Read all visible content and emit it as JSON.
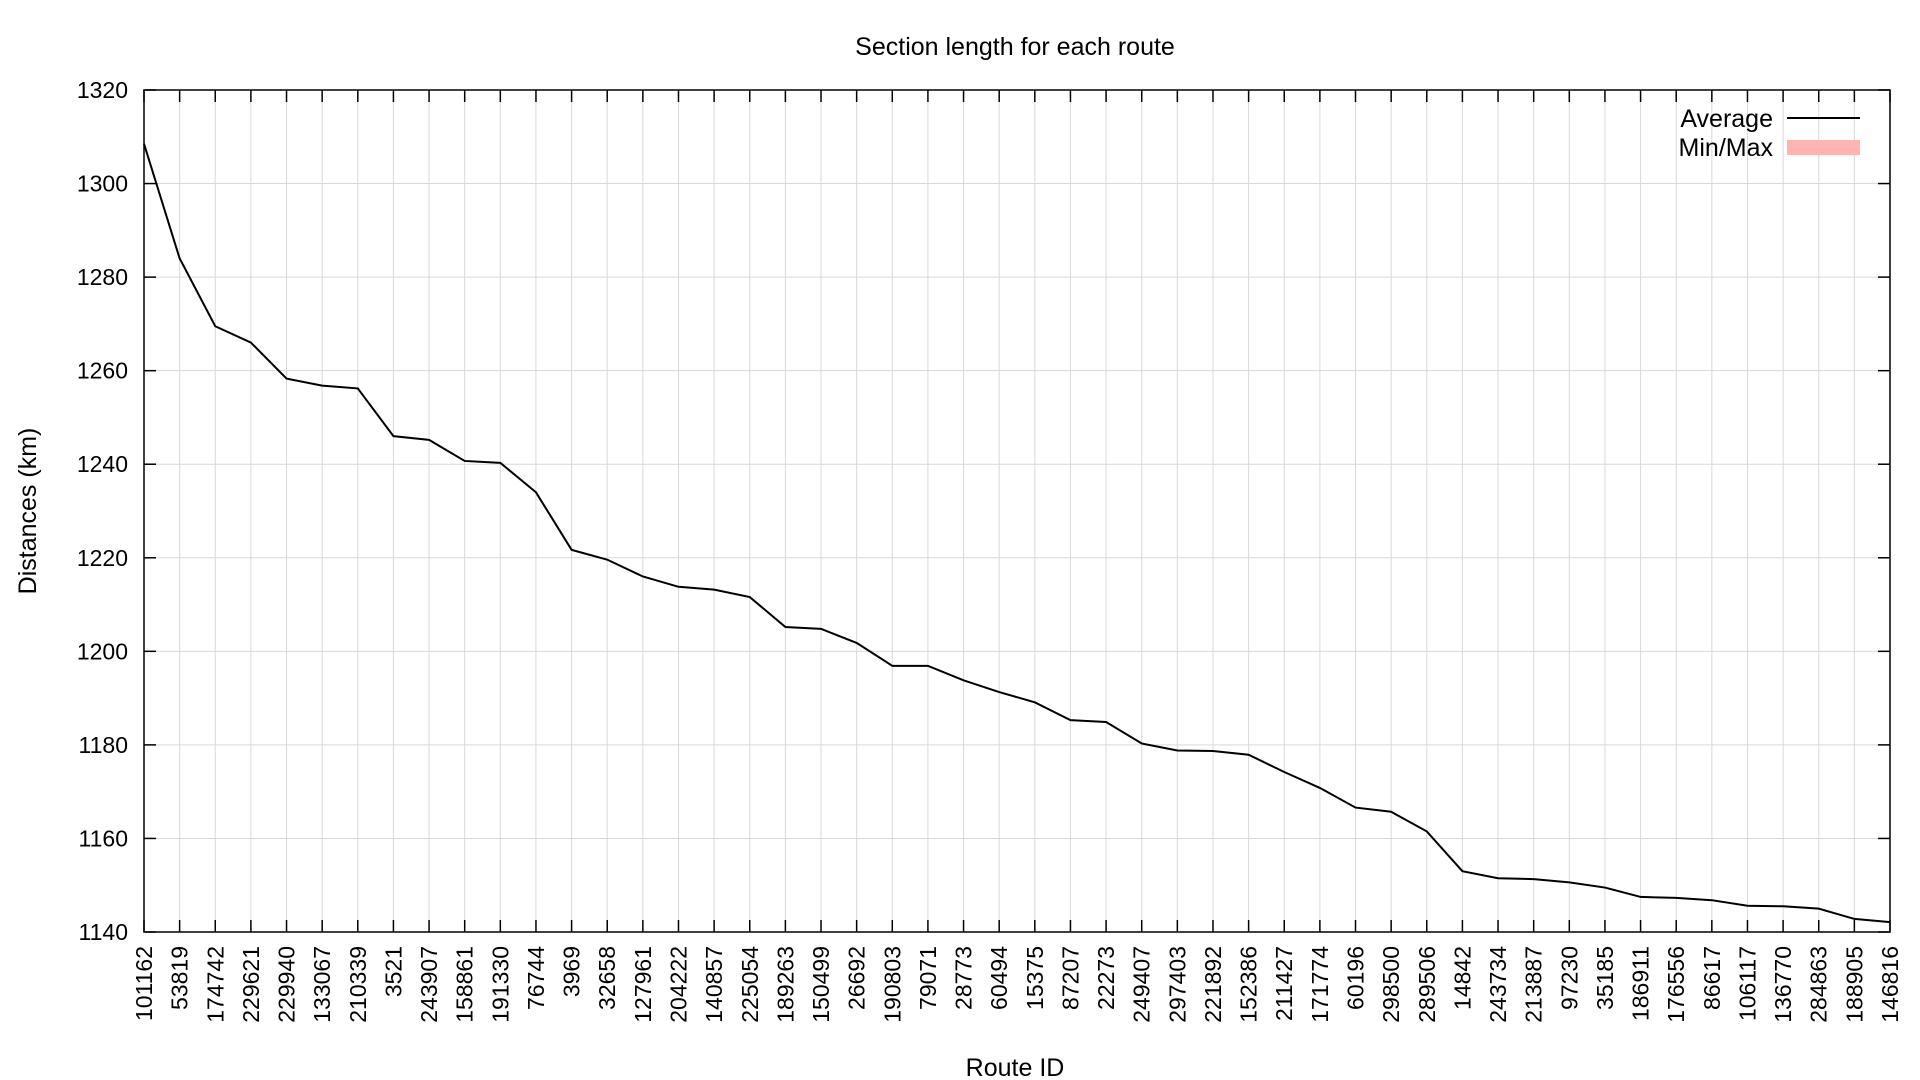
{
  "chart_data": {
    "type": "line",
    "title": "Section length for each route",
    "xlabel": "Route ID",
    "ylabel": "Distances (km)",
    "ylim": [
      1140,
      1320
    ],
    "yticks": [
      1140,
      1160,
      1180,
      1200,
      1220,
      1240,
      1260,
      1280,
      1300,
      1320
    ],
    "grid": true,
    "legend_position": "top-right",
    "categories": [
      "101162",
      "53819",
      "174742",
      "229621",
      "229940",
      "133067",
      "210339",
      "3521",
      "243907",
      "158861",
      "191330",
      "76744",
      "3969",
      "32658",
      "127961",
      "204222",
      "140857",
      "225054",
      "189263",
      "150499",
      "26692",
      "190803",
      "79071",
      "28773",
      "60494",
      "15375",
      "87207",
      "22273",
      "249407",
      "297403",
      "221892",
      "152386",
      "211427",
      "171774",
      "60196",
      "298500",
      "289506",
      "14842",
      "243734",
      "213887",
      "97230",
      "35185",
      "186911",
      "176556",
      "86617",
      "106117",
      "136770",
      "284863",
      "188905",
      "146816"
    ],
    "series": [
      {
        "name": "Average",
        "color": "#000000",
        "values": [
          1308.5,
          1284,
          1269.5,
          1266,
          1258.3,
          1256.8,
          1256.2,
          1246,
          1245.2,
          1240.7,
          1240.3,
          1234,
          1221.7,
          1219.6,
          1216,
          1213.8,
          1213.2,
          1211.6,
          1205.2,
          1204.8,
          1201.8,
          1196.9,
          1196.9,
          1193.8,
          1191.3,
          1189.1,
          1185.3,
          1184.9,
          1180.3,
          1178.8,
          1178.7,
          1177.9,
          1174.2,
          1170.8,
          1166.6,
          1165.7,
          1161.5,
          1153,
          1151.5,
          1151.3,
          1150.6,
          1149.5,
          1147.5,
          1147.3,
          1146.8,
          1145.6,
          1145.5,
          1145,
          1142.8,
          1142.1
        ]
      }
    ],
    "legend": [
      {
        "label": "Average",
        "kind": "line",
        "color": "#000000"
      },
      {
        "label": "Min/Max",
        "kind": "band",
        "color": "#ffb3b3"
      }
    ]
  }
}
